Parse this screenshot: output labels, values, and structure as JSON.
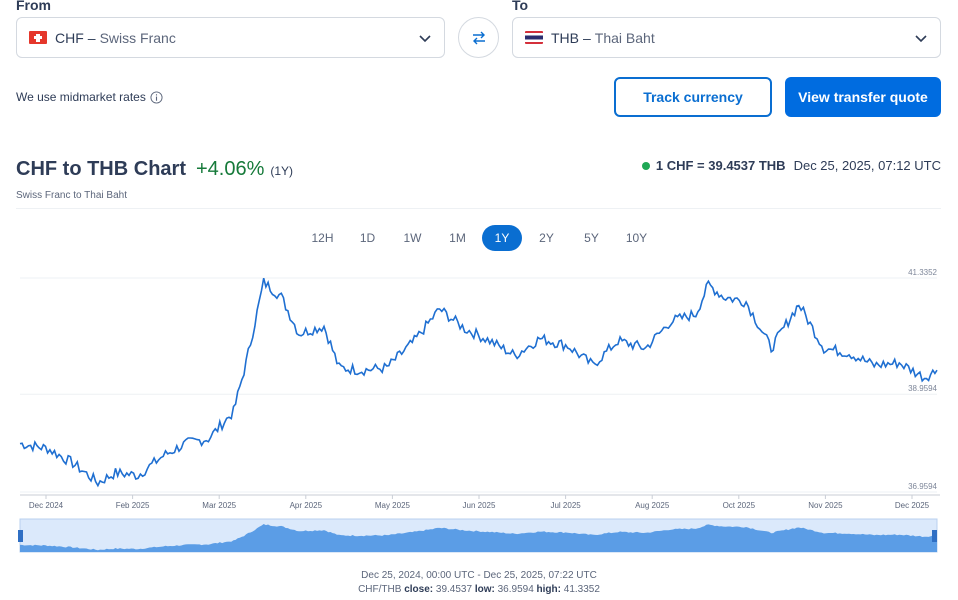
{
  "converter": {
    "from_label": "From",
    "to_label": "To",
    "from_code": "CHF",
    "from_name": "Swiss Franc",
    "to_code": "THB",
    "to_name": "Thai Baht",
    "dash": "–",
    "midmarket_text": "We use midmarket rates",
    "track_label": "Track currency",
    "quote_label": "View transfer quote"
  },
  "header": {
    "title": "CHF to THB Chart",
    "change": "+4.06%",
    "period": "(1Y)",
    "subtitle": "Swiss Franc to Thai Baht",
    "rate": "1 CHF = 39.4537 THB",
    "timestamp": "Dec 25, 2025, 07:12 UTC"
  },
  "tabs": [
    "12H",
    "1D",
    "1W",
    "1M",
    "1Y",
    "2Y",
    "5Y",
    "10Y"
  ],
  "active_tab": "1Y",
  "footer": {
    "range": "Dec 25, 2024, 00:00 UTC - Dec 25, 2025, 07:22 UTC",
    "pair": "CHF/THB",
    "close_label": "close:",
    "close": "39.4537",
    "low_label": "low:",
    "low": "36.9594",
    "high_label": "high:",
    "high": "41.3352"
  },
  "colors": {
    "accent": "#0a6ed1",
    "positive": "#167a3a",
    "line": "#1f6fd1",
    "navigator_fill": "#5b9de6"
  },
  "chart_data": {
    "type": "line",
    "ylim": [
      36.9594,
      41.3352
    ],
    "ytick_labels": [
      "41.3352",
      "38.9594",
      "36.9594"
    ],
    "x_tick_labels": [
      "Dec 2024",
      "Feb 2025",
      "Mar 2025",
      "Apr 2025",
      "May 2025",
      "Jun 2025",
      "Jul 2025",
      "Aug 2025",
      "Oct 2025",
      "Nov 2025",
      "Dec 2025"
    ],
    "series": [
      {
        "x": [
          "2024-12-25",
          "2025-01-05",
          "2025-01-15",
          "2025-01-25",
          "2025-02-01",
          "2025-02-10",
          "2025-02-20",
          "2025-03-01",
          "2025-03-10",
          "2025-03-20",
          "2025-03-25",
          "2025-04-01",
          "2025-04-08",
          "2025-04-15",
          "2025-04-25",
          "2025-05-01",
          "2025-05-10",
          "2025-05-20",
          "2025-05-31",
          "2025-06-10",
          "2025-06-20",
          "2025-06-30",
          "2025-07-10",
          "2025-07-20",
          "2025-07-31",
          "2025-08-10",
          "2025-08-20",
          "2025-08-31",
          "2025-09-10",
          "2025-09-20",
          "2025-09-25",
          "2025-10-01",
          "2025-10-10",
          "2025-10-20",
          "2025-10-31",
          "2025-11-10",
          "2025-11-20",
          "2025-11-30",
          "2025-12-10",
          "2025-12-20",
          "2025-12-25"
        ],
        "y": [
          37.95,
          37.85,
          37.55,
          37.15,
          37.35,
          37.3,
          37.7,
          37.95,
          38.05,
          38.6,
          39.6,
          41.25,
          40.95,
          40.2,
          40.35,
          39.5,
          39.45,
          39.5,
          40.05,
          40.7,
          40.3,
          40.05,
          39.75,
          40.1,
          39.95,
          39.55,
          40.05,
          39.9,
          40.45,
          40.6,
          41.2,
          40.95,
          40.85,
          39.9,
          40.8,
          39.9,
          39.8,
          39.55,
          39.6,
          39.3,
          39.45
        ]
      }
    ]
  }
}
